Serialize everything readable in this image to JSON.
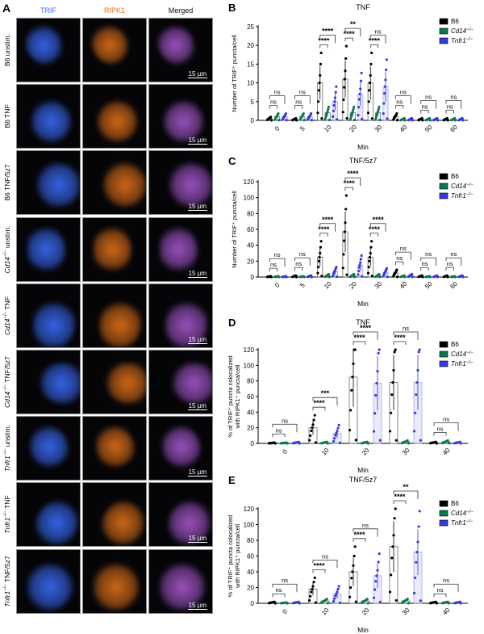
{
  "panel_a": {
    "letter": "A",
    "columns": [
      {
        "label": "TRIF",
        "color": "#3d6cff"
      },
      {
        "label": "RIPK1",
        "color": "#e8731a"
      },
      {
        "label": "Merged",
        "color": "#111111"
      }
    ],
    "rows": [
      {
        "genotype": "B6",
        "sup": "",
        "italic": false,
        "treatment": "unstim."
      },
      {
        "genotype": "B6",
        "sup": "",
        "italic": false,
        "treatment": "TNF"
      },
      {
        "genotype": "B6",
        "sup": "",
        "italic": false,
        "treatment": "TNF/5z7"
      },
      {
        "genotype": "Cd14",
        "sup": "−/−",
        "italic": true,
        "treatment": "unstim."
      },
      {
        "genotype": "Cd14",
        "sup": "−/−",
        "italic": true,
        "treatment": "TNF"
      },
      {
        "genotype": "Cd14",
        "sup": "−/−",
        "italic": true,
        "treatment": "TNF/5z7"
      },
      {
        "genotype": "Tnfr1",
        "sup": "−/−",
        "italic": true,
        "treatment": "unstim."
      },
      {
        "genotype": "Tnfr1",
        "sup": "−/−",
        "italic": true,
        "treatment": "TNF"
      },
      {
        "genotype": "Tnfr1",
        "sup": "−/−",
        "italic": true,
        "treatment": "TNF/5z7"
      }
    ],
    "scale_bar": "15 µm"
  },
  "chart_data": [
    {
      "letter": "B",
      "type": "bar",
      "title": "TNF",
      "xlabel": "Min",
      "ylabel": [
        "Number of TRIF⁺ puncta/cell"
      ],
      "ylim": [
        0,
        25
      ],
      "yticks": [
        0,
        5,
        10,
        15,
        20,
        25
      ],
      "categories": [
        "0",
        "5",
        "10",
        "20",
        "30",
        "40",
        "50",
        "60"
      ],
      "legend": "top-right",
      "series": [
        {
          "name": "B6",
          "sup": "",
          "color": "#000000",
          "values": [
            0.5,
            0.3,
            10,
            11,
            10,
            1,
            0.3,
            0.3
          ]
        },
        {
          "name": "Cd14",
          "sup": "−/−",
          "color": "#0b7a4b",
          "values": [
            1,
            1,
            2,
            2,
            2,
            0.3,
            0.3,
            0.3
          ]
        },
        {
          "name": "Tnfr1",
          "sup": "−/−",
          "color": "#3838e0",
          "values": [
            1,
            1,
            5,
            7,
            9,
            0.3,
            0.3,
            0.3
          ]
        }
      ],
      "significance": [
        [
          "ns",
          "ns"
        ],
        [
          "ns",
          "ns"
        ],
        [
          "****",
          "****"
        ],
        [
          "****",
          "**"
        ],
        [
          "****",
          "ns"
        ],
        [
          "ns",
          "ns"
        ],
        [
          "ns",
          "ns"
        ],
        [
          "ns",
          "ns"
        ]
      ]
    },
    {
      "letter": "C",
      "type": "bar",
      "title": "TNF/5z7",
      "xlabel": "Min",
      "ylabel": [
        "Number of TRIF⁺ puncta/cell"
      ],
      "ylim": [
        0,
        120
      ],
      "yticks": [
        0,
        20,
        40,
        60,
        80,
        100,
        120
      ],
      "categories": [
        "0",
        "5",
        "10",
        "20",
        "30",
        "40",
        "50",
        "60"
      ],
      "legend": "top-right",
      "series": [
        {
          "name": "B6",
          "sup": "",
          "color": "#000000",
          "values": [
            0.5,
            1,
            25,
            57,
            25,
            5,
            1,
            1
          ]
        },
        {
          "name": "Cd14",
          "sup": "−/−",
          "color": "#0b7a4b",
          "values": [
            0.5,
            0.5,
            2,
            2,
            2,
            1,
            0.5,
            0.5
          ]
        },
        {
          "name": "Tnfr1",
          "sup": "−/−",
          "color": "#3838e0",
          "values": [
            0.5,
            1,
            7,
            15,
            6,
            2,
            1,
            1
          ]
        }
      ],
      "significance": [
        [
          "ns",
          "ns"
        ],
        [
          "ns",
          "ns"
        ],
        [
          "****",
          "****"
        ],
        [
          "****",
          "****"
        ],
        [
          "****",
          "****"
        ],
        [
          "ns",
          "ns"
        ],
        [
          "ns",
          "ns"
        ],
        [
          "ns",
          "ns"
        ]
      ]
    },
    {
      "letter": "D",
      "type": "bar",
      "title": "TNF",
      "xlabel": "Min",
      "ylabel": [
        "% of TRIF⁺ puncta colocalized",
        "with RIPK1⁺ puncta/cell"
      ],
      "ylim": [
        0,
        120
      ],
      "yticks": [
        0,
        20,
        40,
        60,
        80,
        100,
        120
      ],
      "categories": [
        "0",
        "10",
        "20",
        "30",
        "40"
      ],
      "legend": "top-right",
      "series": [
        {
          "name": "B6",
          "sup": "",
          "color": "#000000",
          "values": [
            0.5,
            20,
            85,
            78,
            1
          ]
        },
        {
          "name": "Cd14",
          "sup": "−/−",
          "color": "#0b7a4b",
          "values": [
            0.5,
            1,
            1,
            2,
            2
          ]
        },
        {
          "name": "Tnfr1",
          "sup": "−/−",
          "color": "#3838e0",
          "values": [
            1,
            13,
            77,
            78,
            1
          ]
        }
      ],
      "significance": [
        [
          "ns",
          "ns"
        ],
        [
          "****",
          "***"
        ],
        [
          "****",
          "****"
        ],
        [
          "****",
          "ns"
        ],
        [
          "ns",
          "ns"
        ]
      ]
    },
    {
      "letter": "E",
      "type": "bar",
      "title": "TNF/5z7",
      "xlabel": "Min",
      "ylabel": [
        "% of TRIF⁺ puncta colocalized",
        "with RIPK1⁺ puncta/cell"
      ],
      "ylim": [
        0,
        120
      ],
      "yticks": [
        0,
        20,
        40,
        60,
        80,
        100,
        120
      ],
      "categories": [
        "0",
        "10",
        "20",
        "30",
        "40"
      ],
      "legend": "top-right",
      "series": [
        {
          "name": "B6",
          "sup": "",
          "color": "#000000",
          "values": [
            1,
            18,
            40,
            72,
            1
          ]
        },
        {
          "name": "Cd14",
          "sup": "−/−",
          "color": "#0b7a4b",
          "values": [
            0.5,
            3,
            3,
            3,
            1
          ]
        },
        {
          "name": "Tnfr1",
          "sup": "−/−",
          "color": "#3838e0",
          "values": [
            1,
            12,
            35,
            65,
            1
          ]
        }
      ],
      "significance": [
        [
          "ns",
          "ns"
        ],
        [
          "****",
          "ns"
        ],
        [
          "****",
          "ns"
        ],
        [
          "****",
          "**"
        ],
        [
          "ns",
          "ns"
        ]
      ]
    }
  ]
}
